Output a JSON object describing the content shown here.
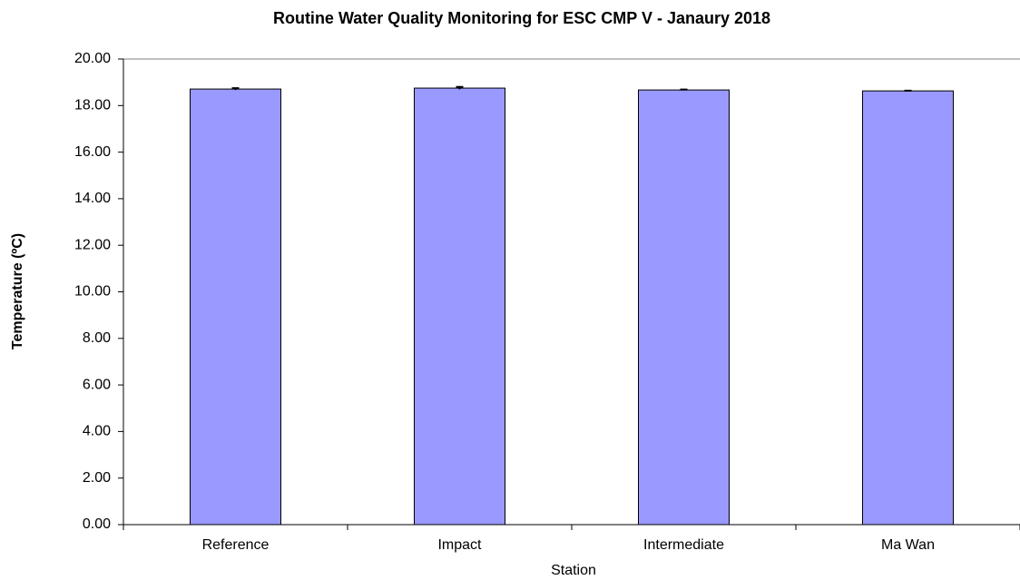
{
  "chart_data": {
    "type": "bar",
    "title": "Routine Water Quality Monitoring for ESC CMP V -  Janaury 2018",
    "x_label": "Station",
    "y_label": "Temperature (ºC)",
    "categories": [
      "Reference",
      "Impact",
      "Intermediate",
      "Ma Wan"
    ],
    "values": [
      18.71,
      18.75,
      18.67,
      18.63
    ],
    "errors": [
      0.04,
      0.05,
      0.02,
      0.01
    ],
    "color": "#9999ff",
    "ylim": [
      0,
      20
    ],
    "yticks": [
      {
        "value": 0,
        "label": "0.00"
      },
      {
        "value": 2,
        "label": "2.00"
      },
      {
        "value": 4,
        "label": "4.00"
      },
      {
        "value": 6,
        "label": "6.00"
      },
      {
        "value": 8,
        "label": "8.00"
      },
      {
        "value": 10,
        "label": "10.00"
      },
      {
        "value": 12,
        "label": "12.00"
      },
      {
        "value": 14,
        "label": "14.00"
      },
      {
        "value": 16,
        "label": "16.00"
      },
      {
        "value": 18,
        "label": "18.00"
      },
      {
        "value": 20,
        "label": "20.00"
      }
    ],
    "grid": false
  }
}
